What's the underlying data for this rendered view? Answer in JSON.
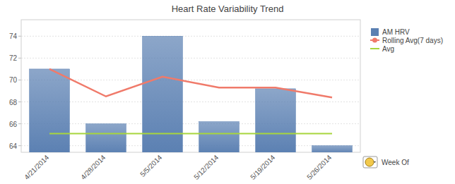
{
  "chart_data": {
    "type": "bar",
    "title": "Heart Rate Variability Trend",
    "x_label": "Week Of",
    "categories": [
      "4/21/2014",
      "4/28/2014",
      "5/5/2014",
      "5/12/2014",
      "5/19/2014",
      "5/26/2014"
    ],
    "series": [
      {
        "name": "AM HRV",
        "type": "bar",
        "color": "#5b80b2",
        "values": [
          71.0,
          66.0,
          74.0,
          66.2,
          69.2,
          64.0
        ]
      },
      {
        "name": "Rolling Avg(7 days)",
        "type": "line",
        "color": "#f07a6a",
        "values": [
          71.0,
          68.5,
          70.3,
          69.3,
          69.3,
          68.4
        ]
      },
      {
        "name": "Avg",
        "type": "line",
        "color": "#a8d63c",
        "values": [
          65.1,
          65.1,
          65.1,
          65.1,
          65.1,
          65.1
        ]
      }
    ],
    "ylim": [
      63.4,
      75.5
    ],
    "yticks": [
      64,
      66,
      68,
      70,
      72,
      74
    ],
    "grid": true,
    "legend": "right"
  }
}
